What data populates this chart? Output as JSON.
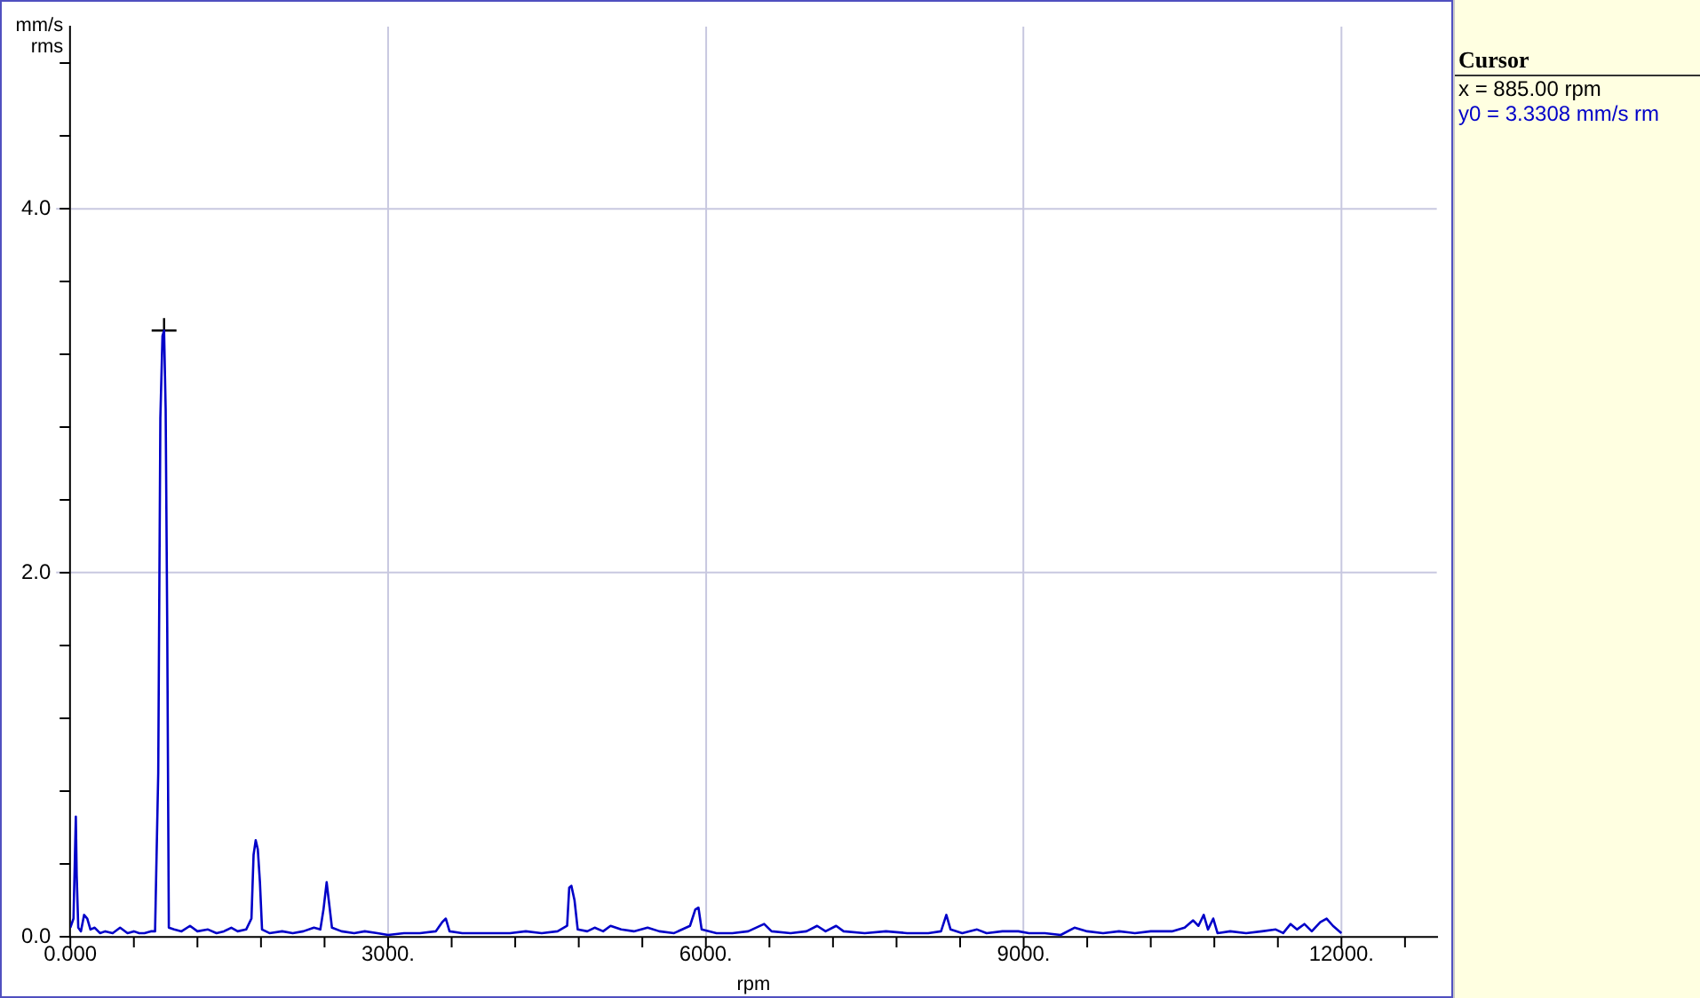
{
  "chart_data": {
    "type": "line",
    "xlabel": "rpm",
    "ylabel": "mm/s rms",
    "xlim": [
      0,
      12900
    ],
    "ylim": [
      0,
      5
    ],
    "xticks": [
      {
        "value": 0,
        "label": "0.000"
      },
      {
        "value": 600,
        "label": null
      },
      {
        "value": 1200,
        "label": null
      },
      {
        "value": 1800,
        "label": null
      },
      {
        "value": 2400,
        "label": null
      },
      {
        "value": 3000,
        "label": "3000."
      },
      {
        "value": 3600,
        "label": null
      },
      {
        "value": 4200,
        "label": null
      },
      {
        "value": 4800,
        "label": null
      },
      {
        "value": 5400,
        "label": null
      },
      {
        "value": 6000,
        "label": "6000."
      },
      {
        "value": 6600,
        "label": null
      },
      {
        "value": 7200,
        "label": null
      },
      {
        "value": 7800,
        "label": null
      },
      {
        "value": 8400,
        "label": null
      },
      {
        "value": 9000,
        "label": "9000."
      },
      {
        "value": 9600,
        "label": null
      },
      {
        "value": 10200,
        "label": null
      },
      {
        "value": 10800,
        "label": null
      },
      {
        "value": 11400,
        "label": null
      },
      {
        "value": 12000,
        "label": "12000."
      },
      {
        "value": 12600,
        "label": null
      }
    ],
    "yticks": [
      {
        "value": 0,
        "label": "0.0"
      },
      {
        "value": 0.4,
        "label": null
      },
      {
        "value": 0.8,
        "label": null
      },
      {
        "value": 1.2,
        "label": null
      },
      {
        "value": 1.6,
        "label": null
      },
      {
        "value": 2,
        "label": "2.0"
      },
      {
        "value": 2.4,
        "label": null
      },
      {
        "value": 2.8,
        "label": null
      },
      {
        "value": 3.2,
        "label": null
      },
      {
        "value": 3.6,
        "label": null
      },
      {
        "value": 4,
        "label": "4.0"
      },
      {
        "value": 4.4,
        "label": null
      },
      {
        "value": 4.8,
        "label": null
      }
    ],
    "grid": true,
    "legend": false,
    "line_style": "solid",
    "marker": "none",
    "annotations": [
      "Cursor",
      "x = 885.00 rpm",
      "y0 = 3.3308 mm/s rm"
    ],
    "series": [
      {
        "color": "#0000c8",
        "x": [
          0,
          30,
          52,
          60,
          75,
          100,
          130,
          160,
          190,
          230,
          280,
          330,
          400,
          470,
          540,
          600,
          650,
          700,
          760,
          800,
          830,
          850,
          870,
          885,
          900,
          915,
          930,
          980,
          1050,
          1130,
          1200,
          1300,
          1380,
          1450,
          1520,
          1580,
          1660,
          1710,
          1730,
          1750,
          1770,
          1790,
          1810,
          1880,
          2000,
          2100,
          2200,
          2300,
          2360,
          2390,
          2420,
          2440,
          2470,
          2560,
          2680,
          2780,
          2900,
          3000,
          3150,
          3300,
          3450,
          3510,
          3545,
          3580,
          3700,
          3850,
          4000,
          4150,
          4300,
          4450,
          4600,
          4690,
          4710,
          4730,
          4760,
          4790,
          4880,
          4950,
          5030,
          5100,
          5200,
          5320,
          5450,
          5560,
          5700,
          5850,
          5900,
          5930,
          5960,
          6100,
          6250,
          6400,
          6550,
          6620,
          6800,
          6950,
          7050,
          7130,
          7230,
          7300,
          7500,
          7700,
          7900,
          8100,
          8220,
          8270,
          8310,
          8420,
          8560,
          8650,
          8800,
          8950,
          9050,
          9200,
          9350,
          9480,
          9600,
          9750,
          9900,
          10050,
          10200,
          10400,
          10520,
          10600,
          10650,
          10700,
          10740,
          10790,
          10830,
          10950,
          11100,
          11250,
          11380,
          11450,
          11520,
          11580,
          11650,
          11720,
          11800,
          11860,
          11920,
          12000
        ],
        "values": [
          0.05,
          0.1,
          0.66,
          0.34,
          0.05,
          0.03,
          0.12,
          0.1,
          0.04,
          0.05,
          0.02,
          0.03,
          0.02,
          0.05,
          0.02,
          0.03,
          0.02,
          0.02,
          0.03,
          0.03,
          0.9,
          2.85,
          3.3,
          3.33,
          2.9,
          1.7,
          0.05,
          0.04,
          0.03,
          0.06,
          0.03,
          0.04,
          0.02,
          0.03,
          0.05,
          0.03,
          0.04,
          0.1,
          0.45,
          0.53,
          0.48,
          0.3,
          0.04,
          0.02,
          0.03,
          0.02,
          0.03,
          0.05,
          0.04,
          0.15,
          0.3,
          0.2,
          0.05,
          0.03,
          0.02,
          0.03,
          0.02,
          0.01,
          0.02,
          0.02,
          0.03,
          0.08,
          0.1,
          0.03,
          0.02,
          0.02,
          0.02,
          0.02,
          0.03,
          0.02,
          0.03,
          0.06,
          0.27,
          0.28,
          0.2,
          0.04,
          0.03,
          0.05,
          0.03,
          0.06,
          0.04,
          0.03,
          0.05,
          0.03,
          0.02,
          0.06,
          0.15,
          0.16,
          0.04,
          0.02,
          0.02,
          0.03,
          0.07,
          0.03,
          0.02,
          0.03,
          0.06,
          0.03,
          0.06,
          0.03,
          0.02,
          0.03,
          0.02,
          0.02,
          0.03,
          0.12,
          0.04,
          0.02,
          0.04,
          0.02,
          0.03,
          0.03,
          0.02,
          0.02,
          0.01,
          0.05,
          0.03,
          0.02,
          0.03,
          0.02,
          0.03,
          0.03,
          0.05,
          0.09,
          0.06,
          0.12,
          0.04,
          0.1,
          0.02,
          0.03,
          0.02,
          0.03,
          0.04,
          0.02,
          0.07,
          0.04,
          0.07,
          0.03,
          0.08,
          0.1,
          0.06,
          0.02
        ]
      },
      {
        "type": "scatter",
        "color": "#000000",
        "marker": "cross",
        "x": [
          885
        ],
        "values": [
          3.33
        ]
      }
    ]
  }
}
